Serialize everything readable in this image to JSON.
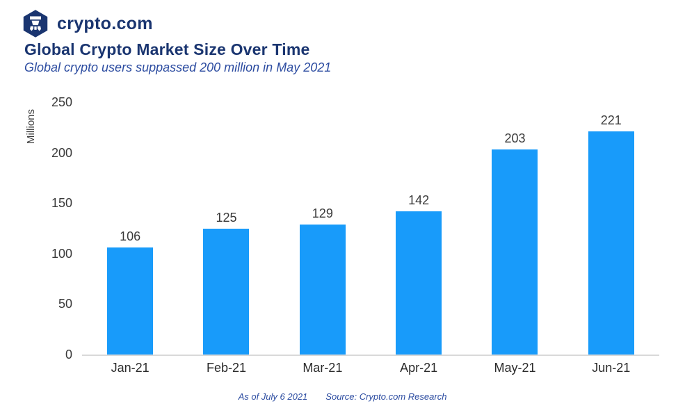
{
  "brand": {
    "name": "crypto.com",
    "logo_icon": "crypto-com-hexagon-logo"
  },
  "header": {
    "title": "Global Crypto Market Size Over Time",
    "subtitle": "Global crypto users suppassed 200 million in May 2021"
  },
  "chart_data": {
    "type": "bar",
    "title": "Global Crypto Market Size Over Time",
    "subtitle": "Global crypto users suppassed 200 million in May 2021",
    "categories": [
      "Jan-21",
      "Feb-21",
      "Mar-21",
      "Apr-21",
      "May-21",
      "Jun-21"
    ],
    "values": [
      106,
      125,
      129,
      142,
      203,
      221
    ],
    "xlabel": "",
    "ylabel": "Millions",
    "ylim": [
      0,
      250
    ],
    "yticks": [
      0,
      50,
      100,
      150,
      200,
      250
    ],
    "grid": false,
    "legend": "none",
    "data_labels": true,
    "bar_color": "#189BFA"
  },
  "footer": {
    "as_of": "As of July 6 2021",
    "source": "Source: Crypto.com Research"
  },
  "colors": {
    "bar_blue": "#189BFA",
    "brand_navy": "#1A3570",
    "subtitle_blue": "#2B4BA0",
    "axis_gray": "#D9D9D9",
    "label_gray": "#3A3A3A"
  }
}
